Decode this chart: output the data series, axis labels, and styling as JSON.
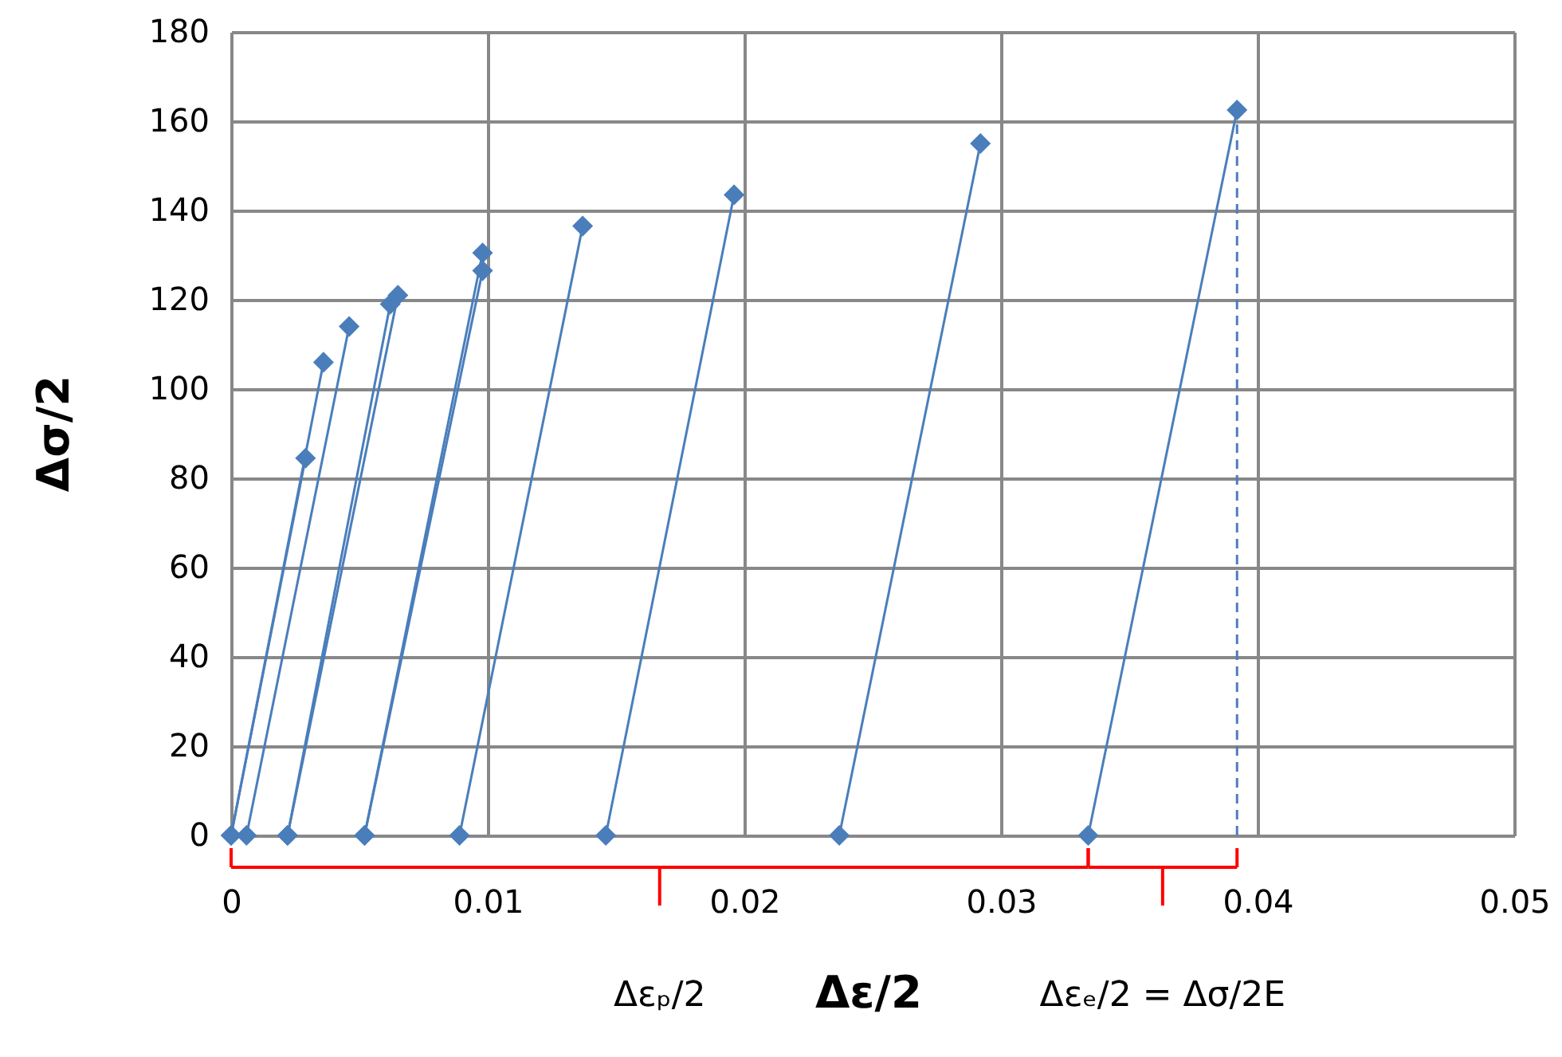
{
  "chart_data": {
    "type": "line",
    "xlabel": "Δε/2",
    "ylabel": "Δσ/2",
    "xlim": [
      0,
      0.05
    ],
    "xticks": [
      0,
      0.01,
      0.02,
      0.03,
      0.04,
      0.05
    ],
    "ylim": [
      0,
      180
    ],
    "yticks": [
      0,
      20,
      40,
      60,
      80,
      100,
      120,
      140,
      160,
      180
    ],
    "grid": true,
    "marker": "diamond",
    "line_style": "solid",
    "series": [
      {
        "color": "#4a7ebb",
        "x": [
          0,
          0.0029
        ],
        "values": [
          0,
          84.5
        ]
      },
      {
        "color": "#4a7ebb",
        "x": [
          0,
          0.0036
        ],
        "values": [
          0,
          106
        ]
      },
      {
        "color": "#4a7ebb",
        "x": [
          0.0006,
          0.0046
        ],
        "values": [
          0,
          114
        ]
      },
      {
        "color": "#4a7ebb",
        "x": [
          0.0022,
          0.0062
        ],
        "values": [
          0,
          119
        ]
      },
      {
        "color": "#4a7ebb",
        "x": [
          0.0022,
          0.0065
        ],
        "values": [
          0,
          121
        ]
      },
      {
        "color": "#4a7ebb",
        "x": [
          0.0052,
          0.0098
        ],
        "values": [
          0,
          126.5
        ]
      },
      {
        "color": "#4a7ebb",
        "x": [
          0.0052,
          0.0098
        ],
        "values": [
          0,
          130.5
        ]
      },
      {
        "color": "#4a7ebb",
        "x": [
          0.0089,
          0.0137
        ],
        "values": [
          0,
          136.5
        ]
      },
      {
        "color": "#4a7ebb",
        "x": [
          0.0146,
          0.0196
        ],
        "values": [
          0,
          143.5
        ]
      },
      {
        "color": "#4a7ebb",
        "x": [
          0.0237,
          0.0292
        ],
        "values": [
          0,
          155
        ]
      },
      {
        "color": "#4a7ebb",
        "x": [
          0.0334,
          0.0392
        ],
        "values": [
          0,
          162.5
        ]
      },
      {
        "color": "#4a7ebb",
        "x": [
          0.0392,
          0.0392
        ],
        "values": [
          0,
          162.5
        ],
        "marker": "none",
        "line_style": "dashed"
      }
    ],
    "annotations": [
      "Δεₚ/2",
      "Δεₑ/2 = Δσ/2E"
    ]
  }
}
